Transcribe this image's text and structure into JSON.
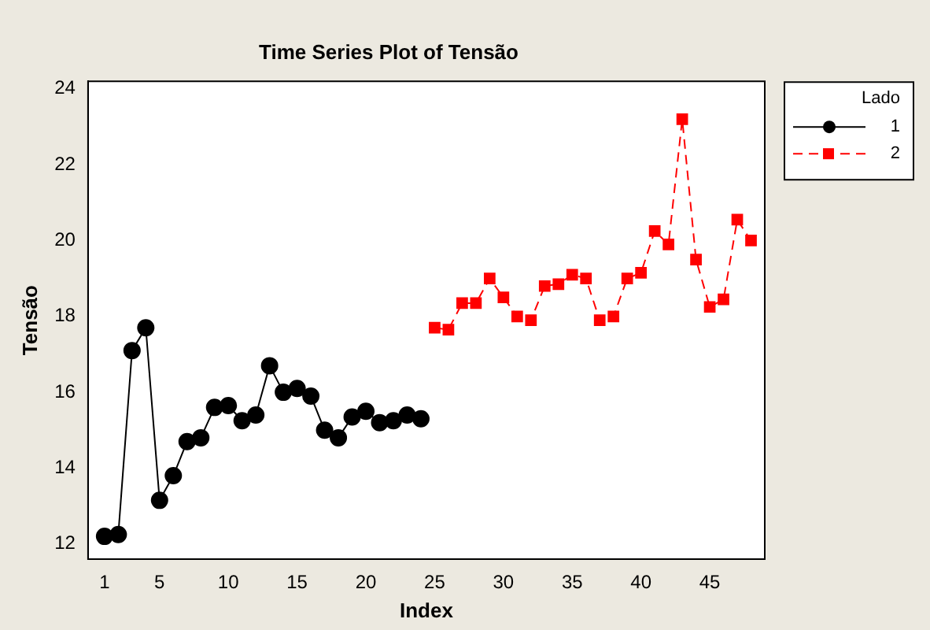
{
  "chart_data": {
    "type": "line",
    "title": "Time Series Plot of Tensão",
    "xlabel": "Index",
    "ylabel": "Tensão",
    "legend_title": "Lado",
    "legend": "top right",
    "grid": false,
    "xlim": [
      -0.2,
      49
    ],
    "xticks": [
      1,
      5,
      10,
      15,
      20,
      25,
      30,
      35,
      40,
      45
    ],
    "ylim": [
      11.6,
      24.2
    ],
    "yticks": [
      12,
      14,
      16,
      18,
      20,
      22,
      24
    ],
    "series": [
      {
        "name": "1",
        "color": "#000000",
        "marker": "circle",
        "line_style": "solid",
        "x": [
          1,
          2,
          3,
          4,
          5,
          6,
          7,
          8,
          9,
          10,
          11,
          12,
          13,
          14,
          15,
          16,
          17,
          18,
          19,
          20,
          21,
          22,
          23,
          24
        ],
        "values": [
          12.2,
          12.25,
          17.1,
          17.7,
          13.15,
          13.8,
          14.7,
          14.8,
          15.6,
          15.65,
          15.25,
          15.4,
          16.7,
          16.0,
          16.1,
          15.9,
          15.0,
          14.8,
          15.35,
          15.5,
          15.2,
          15.25,
          15.4,
          15.3
        ]
      },
      {
        "name": "2",
        "color": "#ff0000",
        "marker": "square",
        "line_style": "dashed",
        "x": [
          25,
          26,
          27,
          28,
          29,
          30,
          31,
          32,
          33,
          34,
          35,
          36,
          37,
          38,
          39,
          40,
          41,
          42,
          43,
          44,
          45,
          46,
          47,
          48
        ],
        "values": [
          17.7,
          17.65,
          18.35,
          18.35,
          19.0,
          18.5,
          18.0,
          17.9,
          18.8,
          18.85,
          19.1,
          19.0,
          17.9,
          18.0,
          19.0,
          19.15,
          20.25,
          19.9,
          23.2,
          19.5,
          18.25,
          18.45,
          20.55,
          20.0
        ]
      }
    ]
  }
}
